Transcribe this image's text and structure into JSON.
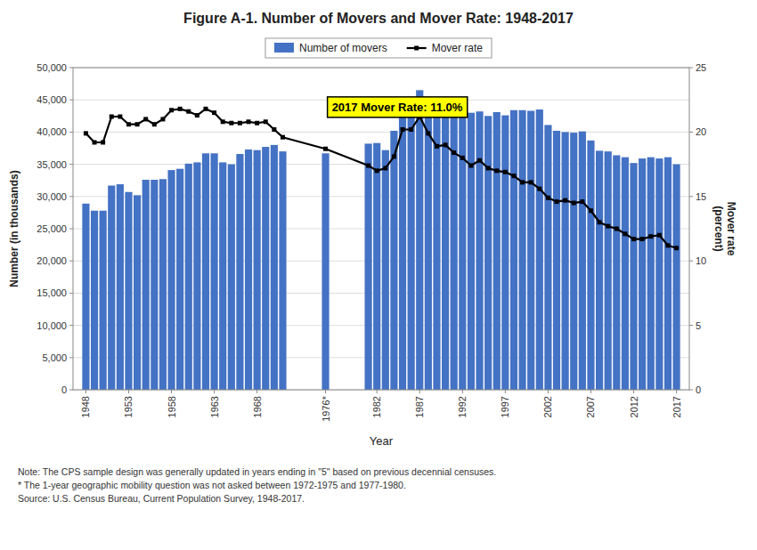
{
  "chart_data": {
    "type": "bar",
    "title": "Figure A-1. Number of Movers and Mover Rate: 1948-2017",
    "xlabel": "Year",
    "ylabel": "Number (in thousands)",
    "y2label": "Mover rate\n(percent)",
    "annotation": "2017 Mover Rate: 11.0%",
    "notes": [
      "Note: The CPS sample design was generally updated in years ending in \"5\" based on previous decennial censuses.",
      "* The 1-year geographic mobility question was not asked between 1972-1975 and 1977-1980.",
      "Source: U.S. Census Bureau, Current Population Survey, 1948-2017."
    ],
    "x": [
      1948,
      1949,
      1950,
      1951,
      1952,
      1953,
      1954,
      1955,
      1956,
      1957,
      1958,
      1959,
      1960,
      1961,
      1962,
      1963,
      1964,
      1965,
      1966,
      1967,
      1968,
      1969,
      1970,
      1971,
      1976,
      1981,
      1982,
      1983,
      1984,
      1985,
      1986,
      1987,
      1988,
      1989,
      1990,
      1991,
      1992,
      1993,
      1994,
      1995,
      1996,
      1997,
      1998,
      1999,
      2000,
      2001,
      2002,
      2003,
      2004,
      2005,
      2006,
      2007,
      2008,
      2009,
      2010,
      2011,
      2012,
      2013,
      2014,
      2015,
      2016,
      2017
    ],
    "series": [
      {
        "name": "Number of movers",
        "type": "bar",
        "color": "#4472C4",
        "values": [
          28900,
          27800,
          27800,
          31700,
          31900,
          30700,
          30200,
          32600,
          32600,
          32700,
          34100,
          34300,
          35100,
          35300,
          36700,
          36700,
          35300,
          35000,
          36600,
          37300,
          37200,
          37700,
          38000,
          37000,
          36700,
          38200,
          38300,
          37200,
          40200,
          42700,
          43300,
          46500,
          43600,
          42700,
          42900,
          43200,
          43200,
          43000,
          43200,
          42500,
          43100,
          42600,
          43400,
          43400,
          43300,
          43500,
          41100,
          40200,
          40000,
          39900,
          40100,
          38700,
          37100,
          37000,
          36400,
          36100,
          35200,
          35900,
          36100,
          35900,
          36100,
          35000
        ]
      },
      {
        "name": "Mover rate",
        "type": "line",
        "color": "#000000",
        "axis": "y2",
        "marker": "square",
        "values": [
          19.9,
          19.2,
          19.2,
          21.2,
          21.2,
          20.6,
          20.6,
          21.0,
          20.6,
          21.0,
          21.7,
          21.8,
          21.6,
          21.3,
          21.8,
          21.5,
          20.8,
          20.7,
          20.7,
          20.8,
          20.7,
          20.8,
          20.2,
          19.6,
          18.7,
          17.4,
          17.0,
          17.2,
          18.1,
          20.2,
          20.2,
          21.2,
          19.9,
          18.9,
          19.0,
          18.4,
          18.0,
          17.4,
          17.8,
          17.2,
          17.0,
          16.9,
          16.6,
          16.1,
          16.1,
          15.6,
          14.9,
          14.6,
          14.7,
          14.5,
          14.6,
          13.9,
          13.0,
          12.7,
          12.5,
          12.1,
          11.7,
          11.7,
          11.9,
          12.0,
          11.2,
          11.0
        ]
      }
    ],
    "xlim": [
      1946.5,
      2018.5
    ],
    "xticks": [
      1948,
      1953,
      1958,
      1963,
      1968,
      {
        "value": 1976,
        "label": "1976*"
      },
      1982,
      1987,
      1992,
      1997,
      2002,
      2007,
      2012,
      2017
    ],
    "ylim": [
      0,
      50000
    ],
    "yticks": [
      0,
      {
        "value": 5000,
        "label": "5,000"
      },
      {
        "value": 10000,
        "label": "10,000"
      },
      {
        "value": 15000,
        "label": "15,000"
      },
      {
        "value": 20000,
        "label": "20,000"
      },
      {
        "value": 25000,
        "label": "25,000"
      },
      {
        "value": 30000,
        "label": "30,000"
      },
      {
        "value": 35000,
        "label": "35,000"
      },
      {
        "value": 40000,
        "label": "40,000"
      },
      {
        "value": 45000,
        "label": "45,000"
      },
      {
        "value": 50000,
        "label": "50,000"
      }
    ],
    "y2lim": [
      0,
      25
    ],
    "y2ticks": [
      0,
      5,
      10,
      15,
      20,
      25
    ],
    "grid": true,
    "legend": "top"
  }
}
